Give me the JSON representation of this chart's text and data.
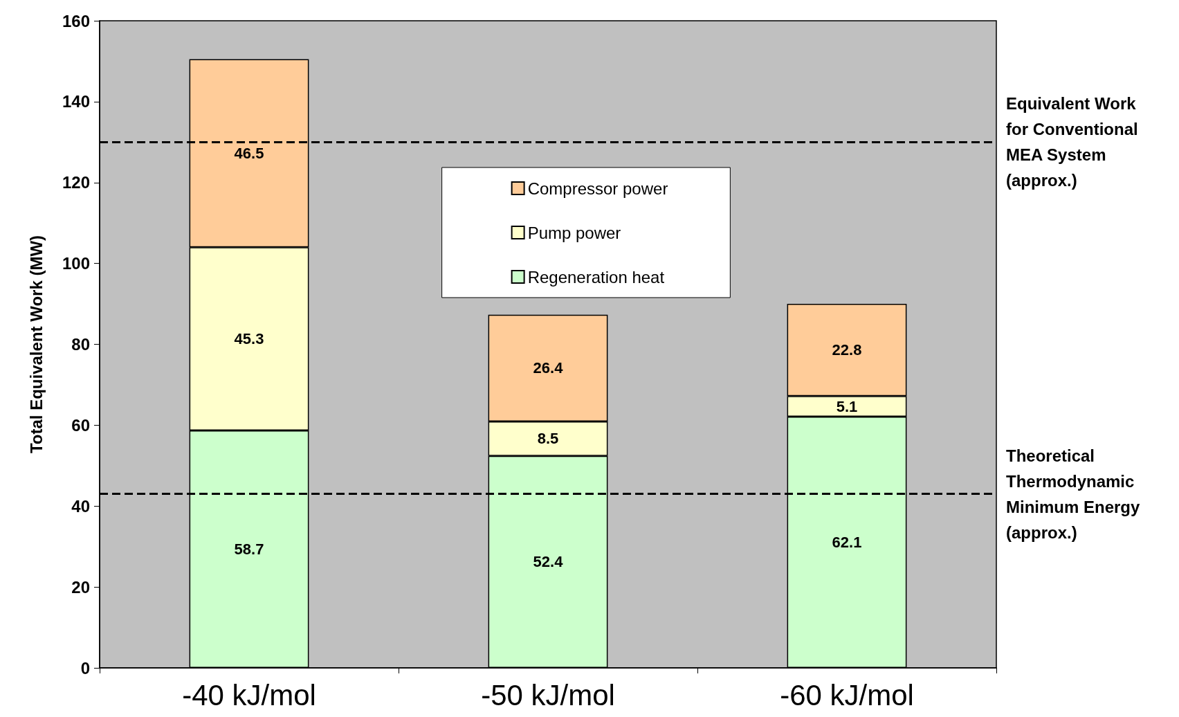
{
  "chart_data": {
    "type": "bar",
    "stacked": true,
    "ylabel": "Total Equivalent Work (MW)",
    "categories": [
      "-40 kJ/mol",
      "-50 kJ/mol",
      "-60 kJ/mol"
    ],
    "series": [
      {
        "name": "Regeneration heat",
        "color": "#ccffcc",
        "values": [
          58.7,
          52.4,
          62.1
        ]
      },
      {
        "name": "Pump power",
        "color": "#ffffcc",
        "values": [
          45.3,
          8.5,
          5.1
        ]
      },
      {
        "name": "Compressor power",
        "color": "#ffcc99",
        "values": [
          46.5,
          26.4,
          22.8
        ]
      }
    ],
    "ylim": [
      0,
      160
    ],
    "yticks": [
      0,
      20,
      40,
      60,
      80,
      100,
      120,
      140,
      160
    ],
    "data_labels": true,
    "legend": "top",
    "grid": false,
    "ref_lines": [
      {
        "axis": "y",
        "value": 130,
        "label": "Equivalent Work for Conventional MEA System (approx.)",
        "color": "#000000",
        "line_style": "dashed"
      },
      {
        "axis": "y",
        "value": 43,
        "label": "Theoretical Thermodynamic Minimum Energy (approx.)",
        "color": "#000000",
        "line_style": "dashed"
      }
    ]
  }
}
